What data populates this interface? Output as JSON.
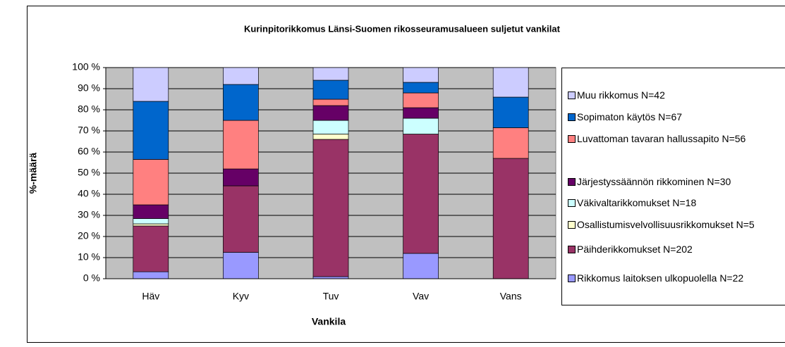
{
  "chart_data": {
    "type": "stacked_bar_100",
    "title": "Kurinpitorikkomus Länsi-Suomen rikosseuramusalueen suljetut vankilat",
    "x_label": "Vankila",
    "y_label": "%-määrä",
    "categories": [
      "Häv",
      "Kyv",
      "Tuv",
      "Vav",
      "Vans"
    ],
    "ylim": [
      0,
      100
    ],
    "yticks": [
      {
        "value": 0,
        "label": "0 %"
      },
      {
        "value": 10,
        "label": "10 %"
      },
      {
        "value": 20,
        "label": "20 %"
      },
      {
        "value": 30,
        "label": "30 %"
      },
      {
        "value": 40,
        "label": "40 %"
      },
      {
        "value": 50,
        "label": "50 %"
      },
      {
        "value": 60,
        "label": "60 %"
      },
      {
        "value": 70,
        "label": "70 %"
      },
      {
        "value": 80,
        "label": "80 %"
      },
      {
        "value": 90,
        "label": "90 %"
      },
      {
        "value": 100,
        "label": "100 %"
      }
    ],
    "grid": true,
    "series": [
      {
        "name": "Rikkomus laitoksen ulkopuolella N=22",
        "color": "#9999ff",
        "values": [
          3.3,
          12.5,
          1,
          12,
          0
        ]
      },
      {
        "name": "Päihderikkomukset N=202",
        "color": "#993366",
        "values": [
          21.7,
          31.5,
          65,
          56.5,
          57
        ]
      },
      {
        "name": "Osallistumisvelvollisuusrikkomukset N=5",
        "color": "#ffffcc",
        "values": [
          1,
          0,
          2.5,
          0,
          0
        ]
      },
      {
        "name": "Väkivaltarikkomukset N=18",
        "color": "#ccffff",
        "values": [
          2.5,
          0,
          6.5,
          7.5,
          0
        ]
      },
      {
        "name": "Järjestyssäännön rikkominen N=30",
        "color": "#660066",
        "values": [
          6.5,
          8,
          7,
          5,
          0
        ]
      },
      {
        "name": "Luvattoman tavaran hallussapito N=56",
        "color": "#ff8080",
        "values": [
          21.5,
          23,
          3,
          7,
          14.5
        ]
      },
      {
        "name": "Sopimaton käytös N=67",
        "color": "#0066cc",
        "values": [
          27.5,
          17,
          9,
          5,
          14.5
        ]
      },
      {
        "name": "Muu rikkomus N=42",
        "color": "#ccccff",
        "values": [
          16,
          8,
          6,
          7,
          14
        ]
      }
    ]
  }
}
